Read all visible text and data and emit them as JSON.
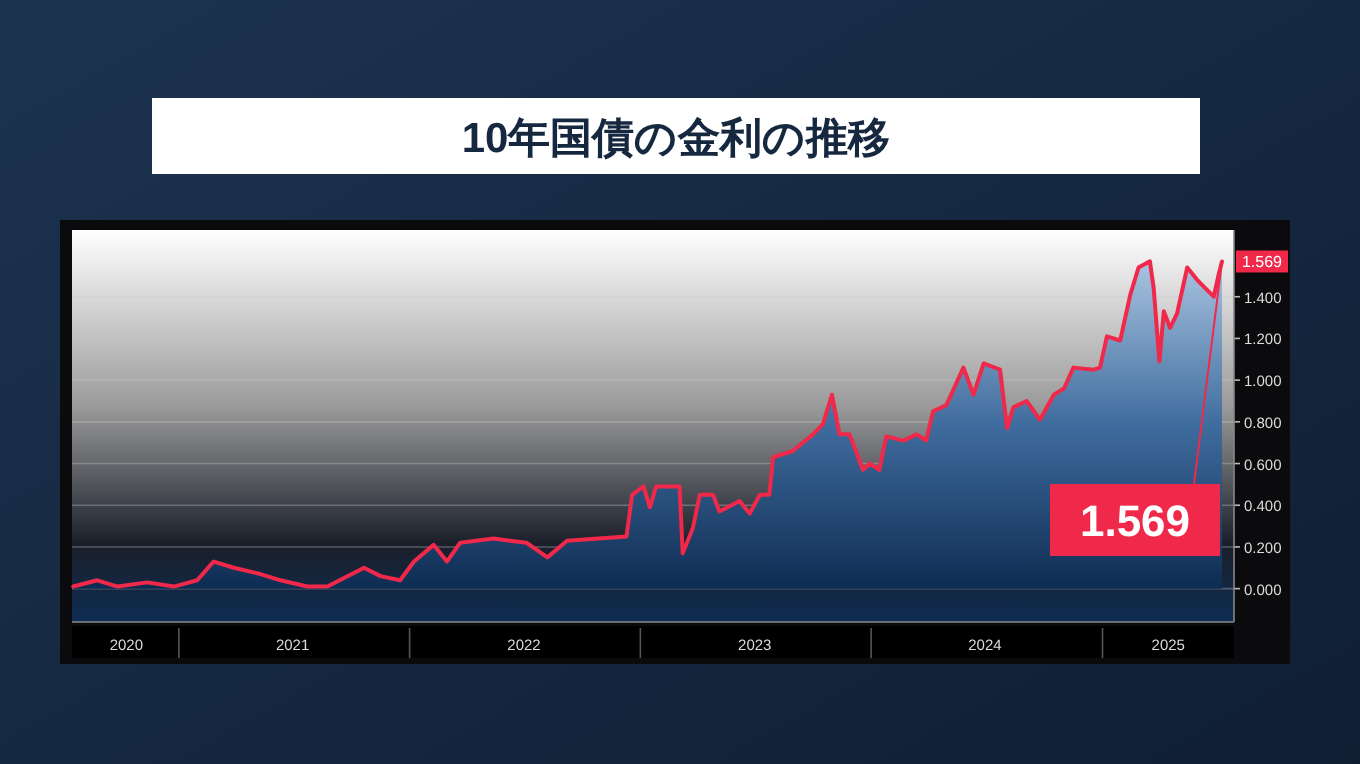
{
  "chart_data": {
    "type": "area",
    "title": "10年国債の金利の推移",
    "x": [
      "2020-07-18",
      "2020-08-25",
      "2020-09-26",
      "2020-11-12",
      "2020-12-24",
      "2021-01-30",
      "2021-02-25",
      "2021-03-29",
      "2021-05-10",
      "2021-06-11",
      "2021-07-23",
      "2021-08-24",
      "2021-10-21",
      "2021-11-16",
      "2021-12-17",
      "2022-01-08",
      "2022-02-08",
      "2022-03-01",
      "2022-03-22",
      "2022-05-14",
      "2022-07-05",
      "2022-08-07",
      "2022-09-07",
      "2022-12-10",
      "2022-12-19",
      "2023-01-06",
      "2023-01-16",
      "2023-01-26",
      "2023-02-01",
      "2023-03-04",
      "2023-03-09",
      "2023-03-25",
      "2023-04-05",
      "2023-04-26",
      "2023-05-06",
      "2023-06-07",
      "2023-06-23",
      "2023-07-09",
      "2023-07-24",
      "2023-07-30",
      "2023-08-30",
      "2023-10-01",
      "2023-10-17",
      "2023-10-31",
      "2023-11-12",
      "2023-11-28",
      "2023-12-19",
      "2023-12-30",
      "2024-01-14",
      "2024-01-25",
      "2024-02-21",
      "2024-03-13",
      "2024-03-28",
      "2024-04-08",
      "2024-04-29",
      "2024-05-26",
      "2024-06-11",
      "2024-06-27",
      "2024-07-23",
      "2024-08-03",
      "2024-08-13",
      "2024-09-03",
      "2024-09-24",
      "2024-10-16",
      "2024-11-01",
      "2024-11-16",
      "2024-12-18",
      "2024-12-28",
      "2025-01-08",
      "2025-01-29",
      "2025-02-14",
      "2025-02-27",
      "2025-03-17",
      "2025-03-23",
      "2025-04-01",
      "2025-04-08",
      "2025-04-18",
      "2025-04-29",
      "2025-05-15",
      "2025-05-31",
      "2025-06-26",
      "2025-07-04",
      "2025-07-09"
    ],
    "series": [
      {
        "color": "#f0284a",
        "values": [
          0.01,
          0.04,
          0.01,
          0.03,
          0.01,
          0.04,
          0.13,
          0.1,
          0.07,
          0.04,
          0.01,
          0.01,
          0.1,
          0.06,
          0.04,
          0.13,
          0.21,
          0.13,
          0.22,
          0.24,
          0.22,
          0.15,
          0.23,
          0.25,
          0.45,
          0.49,
          0.39,
          0.49,
          0.49,
          0.49,
          0.17,
          0.29,
          0.45,
          0.45,
          0.37,
          0.42,
          0.36,
          0.45,
          0.45,
          0.63,
          0.66,
          0.74,
          0.79,
          0.93,
          0.74,
          0.74,
          0.57,
          0.6,
          0.57,
          0.73,
          0.71,
          0.74,
          0.71,
          0.85,
          0.88,
          1.06,
          0.93,
          1.08,
          1.05,
          0.77,
          0.87,
          0.9,
          0.81,
          0.93,
          0.96,
          1.06,
          1.05,
          1.06,
          1.21,
          1.19,
          1.41,
          1.54,
          1.57,
          1.44,
          1.09,
          1.33,
          1.25,
          1.32,
          1.54,
          1.48,
          1.4,
          1.51,
          1.569
        ]
      }
    ],
    "xlim": [
      "2020-07-16",
      "2025-07-28"
    ],
    "xticks": [
      {
        "value": "2020-10-10",
        "label": "2020"
      },
      {
        "value": "2021-01-01",
        "label": null
      },
      {
        "value": "2021-06-30",
        "label": "2021"
      },
      {
        "value": "2022-01-01",
        "label": null
      },
      {
        "value": "2022-07-01",
        "label": "2022"
      },
      {
        "value": "2023-01-01",
        "label": null
      },
      {
        "value": "2023-07-01",
        "label": "2023"
      },
      {
        "value": "2024-01-01",
        "label": null
      },
      {
        "value": "2024-06-29",
        "label": "2024"
      },
      {
        "value": "2025-01-01",
        "label": null
      },
      {
        "value": "2025-04-15",
        "label": "2025"
      }
    ],
    "ylim": [
      -0.16,
      1.72
    ],
    "yticks": [
      {
        "value": 0,
        "label": "0.000"
      },
      {
        "value": 0.2,
        "label": "0.200"
      },
      {
        "value": 0.4,
        "label": "0.400"
      },
      {
        "value": 0.6,
        "label": "0.600"
      },
      {
        "value": 0.8,
        "label": "0.800"
      },
      {
        "value": 1.0,
        "label": "1.000"
      },
      {
        "value": 1.2,
        "label": "1.200"
      },
      {
        "value": 1.4,
        "label": "1.400"
      }
    ],
    "grid": "y",
    "annotations": [
      {
        "text": "1.569",
        "x": "2025-07-09",
        "y": 1.569
      },
      {
        "text": "1.569",
        "x": "2025-07-09",
        "y": 1.569
      }
    ]
  }
}
